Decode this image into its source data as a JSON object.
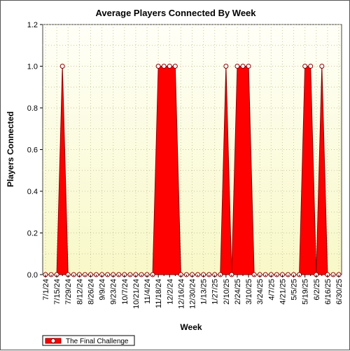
{
  "chart_data": {
    "type": "area",
    "title": "Average Players Connected By Week",
    "xlabel": "Week",
    "ylabel": "Players Connected",
    "ylim": [
      0,
      1.2
    ],
    "yticks": [
      "0.0",
      "0.2",
      "0.4",
      "0.6",
      "0.8",
      "1.0",
      "1.2"
    ],
    "grid": true,
    "legend_position": "bottom-left",
    "x_tick_labels": [
      "7/1/24",
      "7/15/24",
      "7/29/24",
      "8/12/24",
      "8/26/24",
      "9/9/24",
      "9/23/24",
      "10/7/24",
      "10/21/24",
      "11/4/24",
      "11/18/24",
      "12/2/24",
      "12/16/24",
      "12/30/24",
      "1/13/25",
      "1/27/25",
      "2/10/25",
      "2/24/25",
      "3/10/25",
      "3/24/25",
      "4/7/25",
      "4/21/25",
      "5/5/25",
      "5/19/25",
      "6/2/25",
      "6/16/25",
      "6/30/25"
    ],
    "x": [
      "7/1/24",
      "7/8/24",
      "7/15/24",
      "7/22/24",
      "7/29/24",
      "8/5/24",
      "8/12/24",
      "8/19/24",
      "8/26/24",
      "9/2/24",
      "9/9/24",
      "9/16/24",
      "9/23/24",
      "9/30/24",
      "10/7/24",
      "10/14/24",
      "10/21/24",
      "10/28/24",
      "11/4/24",
      "11/11/24",
      "11/18/24",
      "11/25/24",
      "12/2/24",
      "12/9/24",
      "12/16/24",
      "12/23/24",
      "12/30/24",
      "1/6/25",
      "1/13/25",
      "1/20/25",
      "1/27/25",
      "2/3/25",
      "2/10/25",
      "2/17/25",
      "2/24/25",
      "3/3/25",
      "3/10/25",
      "3/17/25",
      "3/24/25",
      "3/31/25",
      "4/7/25",
      "4/14/25",
      "4/21/25",
      "4/28/25",
      "5/5/25",
      "5/12/25",
      "5/19/25",
      "5/26/25",
      "6/2/25",
      "6/9/25",
      "6/16/25",
      "6/23/25",
      "6/30/25"
    ],
    "series": [
      {
        "name": "The Final Challenge",
        "values": [
          0,
          0,
          0,
          1,
          0,
          0,
          0,
          0,
          0,
          0,
          0,
          0,
          0,
          0,
          0,
          0,
          0,
          0,
          0,
          0,
          1,
          1,
          1,
          1,
          0,
          0,
          0,
          0,
          0,
          0,
          0,
          0,
          1,
          0,
          1,
          1,
          1,
          0,
          0,
          0,
          0,
          0,
          0,
          0,
          0,
          0,
          1,
          1,
          0,
          1,
          0,
          0,
          0
        ]
      }
    ]
  },
  "colors": {
    "series_fill": "#ff0000",
    "series_line": "#880000",
    "plot_bg_top": "#fffff8",
    "plot_bg_bottom": "#f8f8c8",
    "grid": "#c8c8a0"
  }
}
